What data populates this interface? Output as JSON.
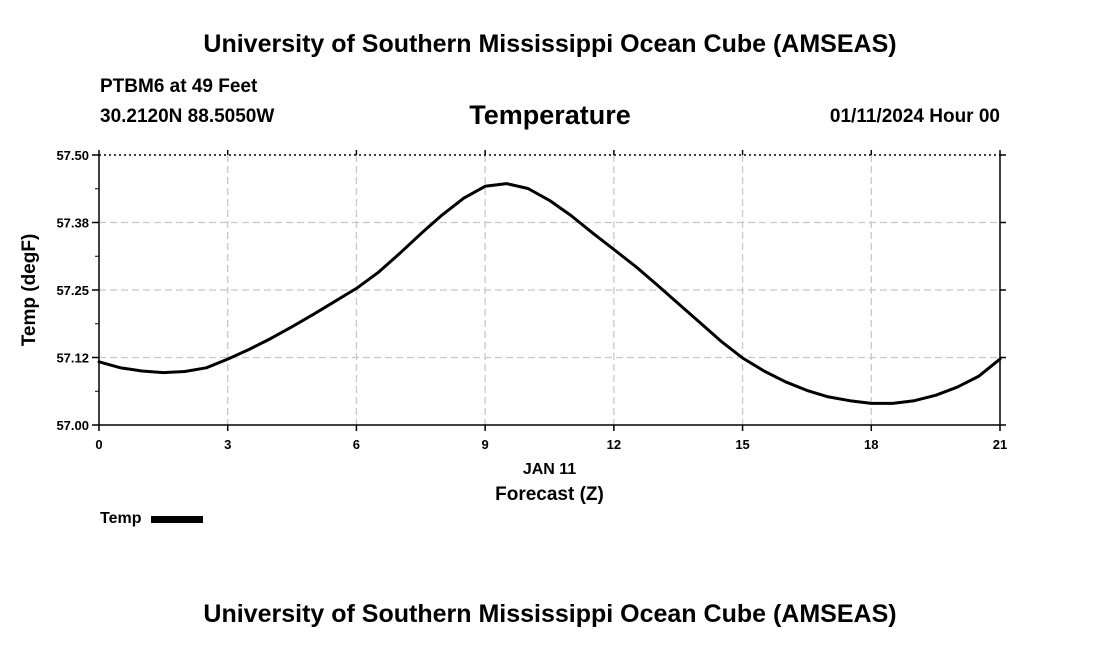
{
  "header": {
    "title": "University of Southern Mississippi Ocean Cube (AMSEAS)",
    "station": "PTBM6 at 49 Feet",
    "coords": "30.2120N  88.5050W",
    "datetime": "01/11/2024 Hour 00"
  },
  "footer": {
    "title": "University of Southern Mississippi Ocean Cube (AMSEAS)"
  },
  "chart_data": {
    "type": "line",
    "title": "Temperature",
    "xlabel": "Forecast (Z)",
    "x_date_label": "JAN 11",
    "ylabel": "Temp (degF)",
    "xlim": [
      0,
      21
    ],
    "ylim": [
      57.0,
      57.5
    ],
    "x_ticks": [
      0,
      3,
      6,
      9,
      12,
      15,
      18,
      21
    ],
    "x_tick_labels": [
      "0",
      "3",
      "6",
      "9",
      "12",
      "15",
      "18",
      "21"
    ],
    "y_ticks": [
      57.0,
      57.125,
      57.25,
      57.375,
      57.5
    ],
    "y_tick_labels": [
      "57.00",
      "57.12",
      "57.25",
      "57.38",
      "57.50"
    ],
    "grid": true,
    "legend_position": "bottom-left",
    "line_color": "#000000",
    "grid_color": "#c8c8c8",
    "series": [
      {
        "name": "Temp",
        "x": [
          0,
          0.5,
          1,
          1.5,
          2,
          2.5,
          3,
          3.5,
          4,
          4.5,
          5,
          5.5,
          6,
          6.5,
          7,
          7.5,
          8,
          8.5,
          9,
          9.5,
          10,
          10.5,
          11,
          11.5,
          12,
          12.5,
          13,
          13.5,
          14,
          14.5,
          15,
          15.5,
          16,
          16.5,
          17,
          17.5,
          18,
          18.5,
          19,
          19.5,
          20,
          20.5,
          21
        ],
        "values": [
          57.117,
          57.106,
          57.1,
          57.097,
          57.099,
          57.106,
          57.122,
          57.14,
          57.16,
          57.182,
          57.205,
          57.229,
          57.253,
          57.282,
          57.317,
          57.354,
          57.389,
          57.42,
          57.442,
          57.447,
          57.438,
          57.416,
          57.388,
          57.356,
          57.325,
          57.294,
          57.26,
          57.225,
          57.19,
          57.155,
          57.124,
          57.1,
          57.08,
          57.064,
          57.052,
          57.045,
          57.04,
          57.04,
          57.045,
          57.055,
          57.07,
          57.09,
          57.122
        ]
      }
    ]
  }
}
